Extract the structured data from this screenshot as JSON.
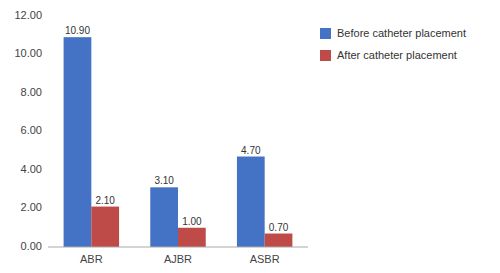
{
  "chart_data": {
    "type": "bar",
    "categories": [
      "ABR",
      "AJBR",
      "ASBR"
    ],
    "series": [
      {
        "name": "Before catheter placement",
        "color": "#4472C4",
        "values": [
          10.9,
          3.1,
          4.7
        ],
        "value_labels": [
          "10.90",
          "3.10",
          "4.70"
        ]
      },
      {
        "name": "After catheter placement",
        "color": "#BE4B48",
        "values": [
          2.1,
          1.0,
          0.7
        ],
        "value_labels": [
          "2.10",
          "1.00",
          "0.70"
        ]
      }
    ],
    "ylim": [
      0,
      12.0
    ],
    "yticks": [
      {
        "value": 0,
        "label": "0.00"
      },
      {
        "value": 2,
        "label": "2.00"
      },
      {
        "value": 4,
        "label": "4.00"
      },
      {
        "value": 6,
        "label": "6.00"
      },
      {
        "value": 8,
        "label": "8.00"
      },
      {
        "value": 10,
        "label": "10.00"
      },
      {
        "value": 12,
        "label": "12.00"
      }
    ],
    "grid": false,
    "legend": "right",
    "data_labels": true
  }
}
